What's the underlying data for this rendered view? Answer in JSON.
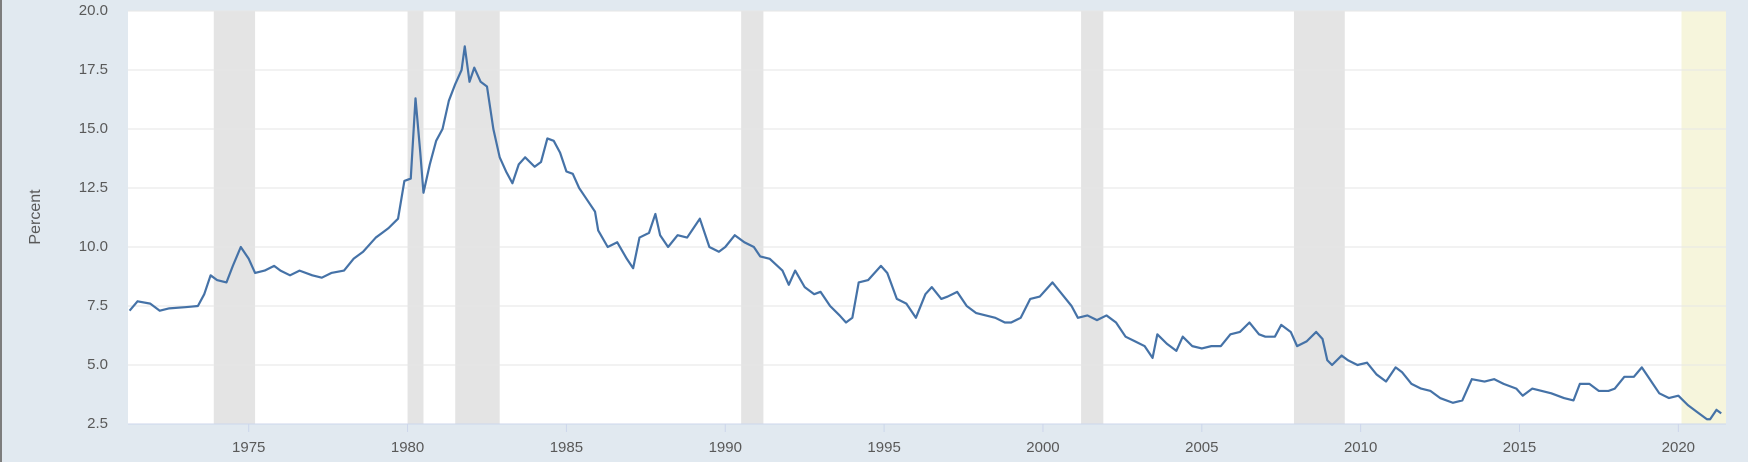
{
  "chart_data": {
    "type": "line",
    "y_label": "Percent",
    "color": "#4572a7",
    "grid": true,
    "xlim": [
      1971.2,
      2021.5
    ],
    "xticks": [
      1975,
      1980,
      1985,
      1990,
      1995,
      2000,
      2005,
      2010,
      2015,
      2020
    ],
    "ylim": [
      2.5,
      20
    ],
    "yticks": [
      2.5,
      {
        "value": 5,
        "label": "5.0"
      },
      7.5,
      {
        "value": 10,
        "label": "10.0"
      },
      12.5,
      {
        "value": 15,
        "label": "15.0"
      },
      17.5,
      {
        "value": 20,
        "label": "20.0"
      }
    ],
    "recession_color": "#e4e4e4",
    "recessions": [
      {
        "start": 1973.9,
        "end": 1975.2
      },
      {
        "start": 1980.0,
        "end": 1980.5
      },
      {
        "start": 1981.5,
        "end": 1982.9
      },
      {
        "start": 1990.5,
        "end": 1991.2
      },
      {
        "start": 2001.2,
        "end": 2001.9
      },
      {
        "start": 2007.9,
        "end": 2009.5
      }
    ],
    "highlight": {
      "start": 2020.1,
      "end": 2021.5,
      "color": "#f6f5dc"
    },
    "x": [
      1971.25,
      1971.5,
      1971.9,
      1972.2,
      1972.5,
      1973.0,
      1973.4,
      1973.6,
      1973.8,
      1974.0,
      1974.3,
      1974.5,
      1974.75,
      1975.0,
      1975.2,
      1975.5,
      1975.8,
      1976.0,
      1976.3,
      1976.6,
      1977.0,
      1977.3,
      1977.6,
      1978.0,
      1978.3,
      1978.6,
      1979.0,
      1979.4,
      1979.7,
      1979.9,
      1980.1,
      1980.25,
      1980.4,
      1980.5,
      1980.7,
      1980.9,
      1981.1,
      1981.3,
      1981.5,
      1981.7,
      1981.8,
      1981.95,
      1982.1,
      1982.3,
      1982.5,
      1982.7,
      1982.9,
      1983.1,
      1983.3,
      1983.5,
      1983.7,
      1984.0,
      1984.2,
      1984.4,
      1984.6,
      1984.8,
      1985.0,
      1985.2,
      1985.4,
      1985.6,
      1985.9,
      1986.0,
      1986.3,
      1986.6,
      1986.9,
      1987.1,
      1987.3,
      1987.6,
      1987.8,
      1987.95,
      1988.2,
      1988.5,
      1988.8,
      1989.0,
      1989.2,
      1989.5,
      1989.8,
      1990.0,
      1990.3,
      1990.6,
      1990.9,
      1991.1,
      1991.4,
      1991.8,
      1992.0,
      1992.2,
      1992.5,
      1992.8,
      1993.0,
      1993.3,
      1993.6,
      1993.8,
      1994.0,
      1994.2,
      1994.5,
      1994.9,
      1995.1,
      1995.4,
      1995.7,
      1996.0,
      1996.3,
      1996.5,
      1996.8,
      1997.0,
      1997.3,
      1997.6,
      1997.9,
      1998.2,
      1998.5,
      1998.8,
      1999.0,
      1999.3,
      1999.6,
      1999.9,
      2000.1,
      2000.3,
      2000.6,
      2000.9,
      2001.1,
      2001.4,
      2001.7,
      2002.0,
      2002.3,
      2002.6,
      2002.9,
      2003.2,
      2003.45,
      2003.6,
      2003.9,
      2004.2,
      2004.4,
      2004.7,
      2005.0,
      2005.3,
      2005.6,
      2005.9,
      2006.2,
      2006.5,
      2006.8,
      2007.0,
      2007.3,
      2007.5,
      2007.8,
      2008.0,
      2008.3,
      2008.6,
      2008.8,
      2008.95,
      2009.1,
      2009.4,
      2009.6,
      2009.9,
      2010.2,
      2010.5,
      2010.8,
      2011.1,
      2011.3,
      2011.6,
      2011.9,
      2012.2,
      2012.5,
      2012.9,
      2013.2,
      2013.5,
      2013.9,
      2014.2,
      2014.5,
      2014.9,
      2015.1,
      2015.4,
      2015.7,
      2016.0,
      2016.4,
      2016.7,
      2016.9,
      2017.2,
      2017.5,
      2017.8,
      2018.0,
      2018.3,
      2018.6,
      2018.85,
      2019.1,
      2019.4,
      2019.7,
      2020.0,
      2020.3,
      2020.6,
      2020.9,
      2021.0,
      2021.2,
      2021.35
    ],
    "values": [
      7.3,
      7.7,
      7.6,
      7.3,
      7.4,
      7.45,
      7.5,
      8.0,
      8.8,
      8.6,
      8.5,
      9.2,
      10.0,
      9.5,
      8.9,
      9.0,
      9.2,
      9.0,
      8.8,
      9.0,
      8.8,
      8.7,
      8.9,
      9.0,
      9.5,
      9.8,
      10.4,
      10.8,
      11.2,
      12.8,
      12.9,
      16.3,
      14.0,
      12.3,
      13.5,
      14.5,
      15.0,
      16.2,
      16.9,
      17.5,
      18.5,
      17.0,
      17.6,
      17.0,
      16.8,
      15.0,
      13.8,
      13.2,
      12.7,
      13.5,
      13.8,
      13.4,
      13.6,
      14.6,
      14.5,
      14.0,
      13.2,
      13.1,
      12.5,
      12.1,
      11.5,
      10.7,
      10.0,
      10.2,
      9.5,
      9.1,
      10.4,
      10.6,
      11.4,
      10.5,
      10.0,
      10.5,
      10.4,
      10.8,
      11.2,
      10.0,
      9.8,
      10.0,
      10.5,
      10.2,
      10.0,
      9.6,
      9.5,
      9.0,
      8.4,
      9.0,
      8.3,
      8.0,
      8.1,
      7.5,
      7.1,
      6.8,
      7.0,
      8.5,
      8.6,
      9.2,
      8.9,
      7.8,
      7.6,
      7.0,
      8.0,
      8.3,
      7.8,
      7.9,
      8.1,
      7.5,
      7.2,
      7.1,
      7.0,
      6.8,
      6.8,
      7.0,
      7.8,
      7.9,
      8.2,
      8.5,
      8.0,
      7.5,
      7.0,
      7.1,
      6.9,
      7.1,
      6.8,
      6.2,
      6.0,
      5.8,
      5.3,
      6.3,
      5.9,
      5.6,
      6.2,
      5.8,
      5.7,
      5.8,
      5.8,
      6.3,
      6.4,
      6.8,
      6.3,
      6.2,
      6.2,
      6.7,
      6.4,
      5.8,
      6.0,
      6.4,
      6.1,
      5.2,
      5.0,
      5.4,
      5.2,
      5.0,
      5.1,
      4.6,
      4.3,
      4.9,
      4.7,
      4.2,
      4.0,
      3.9,
      3.6,
      3.4,
      3.5,
      4.4,
      4.3,
      4.4,
      4.2,
      4.0,
      3.7,
      4.0,
      3.9,
      3.8,
      3.6,
      3.5,
      4.2,
      4.2,
      3.9,
      3.9,
      4.0,
      4.5,
      4.5,
      4.9,
      4.4,
      3.8,
      3.6,
      3.7,
      3.3,
      3.0,
      2.7,
      2.7,
      3.1,
      2.95
    ]
  }
}
